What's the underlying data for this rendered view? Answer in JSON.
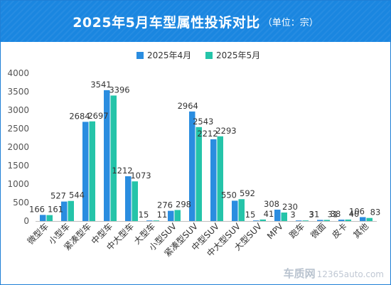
{
  "header": {
    "title": "2025年5月车型属性投诉对比",
    "unit": "（单位：宗）"
  },
  "watermark": {
    "brand": "车质网",
    "site": "12365auto.com"
  },
  "colors": {
    "april": "#2a8de0",
    "may": "#25c4a9",
    "header": "#1a86e0"
  },
  "chart_data": {
    "type": "bar",
    "title": "2025年5月车型属性投诉对比",
    "ylim": [
      0,
      4000
    ],
    "yticks": [
      0,
      500,
      1000,
      1500,
      2000,
      2500,
      3000,
      3500,
      4000
    ],
    "grid": false,
    "legend_position": "top",
    "categories": [
      "微型车",
      "小型车",
      "紧凑型车",
      "中型车",
      "中大型车",
      "大型车",
      "小型SUV",
      "紧凑型SUV",
      "中型SUV",
      "中大型SUV",
      "大型SUV",
      "MPV",
      "跑车",
      "微面",
      "皮卡",
      "其他"
    ],
    "series": [
      {
        "name": "2025年4月",
        "values": [
          166,
          527,
          2684,
          3541,
          1212,
          15,
          276,
          2964,
          2212,
          550,
          15,
          308,
          3,
          31,
          38,
          106
        ]
      },
      {
        "name": "2025年5月",
        "values": [
          161,
          544,
          2697,
          3396,
          1073,
          11,
          298,
          2543,
          2293,
          592,
          41,
          230,
          3,
          31,
          40,
          83
        ]
      }
    ]
  }
}
